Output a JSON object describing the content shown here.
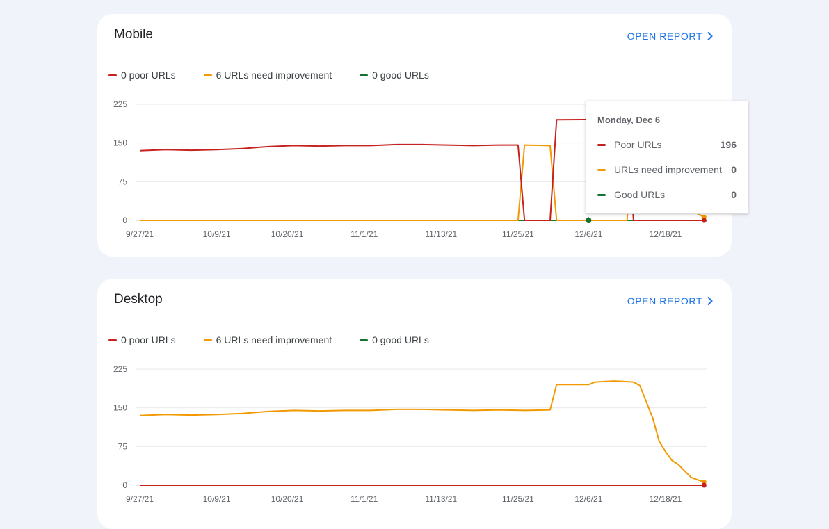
{
  "colors": {
    "poor": "#c5221f",
    "improve": "#f29900",
    "good": "#137333",
    "accent": "#1a73e8"
  },
  "icons": {
    "open_report": "chevron-right-icon"
  },
  "mobile": {
    "title": "Mobile",
    "open_report_label": "OPEN REPORT",
    "legend": {
      "poor": "0 poor URLs",
      "improve": "6 URLs need improvement",
      "good": "0 good URLs"
    },
    "tooltip": {
      "date": "Monday, Dec 6",
      "rows": [
        {
          "label": "Poor URLs",
          "value": "196"
        },
        {
          "label": "URLs need improvement",
          "value": "0"
        },
        {
          "label": "Good URLs",
          "value": "0"
        }
      ]
    }
  },
  "desktop": {
    "title": "Desktop",
    "open_report_label": "OPEN REPORT",
    "legend": {
      "poor": "0 poor URLs",
      "improve": "6 URLs need improvement",
      "good": "0 good URLs"
    }
  },
  "chart_data": [
    {
      "type": "line",
      "chart": "mobile",
      "x_tick_labels": [
        "9/27/21",
        "10/9/21",
        "10/20/21",
        "11/1/21",
        "11/13/21",
        "11/25/21",
        "12/6/21",
        "12/18/21"
      ],
      "y_tick_labels": [
        "0",
        "75",
        "150",
        "225"
      ],
      "ylim": [
        0,
        225
      ],
      "x_start": "2021-09-27",
      "x_end": "2021-12-24",
      "grid": true,
      "legend_position": "top-left",
      "series": [
        {
          "key": "poor",
          "points": [
            [
              "2021-09-27",
              135
            ],
            [
              "2021-10-01",
              137
            ],
            [
              "2021-10-05",
              136
            ],
            [
              "2021-10-09",
              137
            ],
            [
              "2021-10-13",
              139
            ],
            [
              "2021-10-17",
              143
            ],
            [
              "2021-10-21",
              145
            ],
            [
              "2021-10-25",
              144
            ],
            [
              "2021-10-29",
              145
            ],
            [
              "2021-11-02",
              145
            ],
            [
              "2021-11-06",
              147
            ],
            [
              "2021-11-10",
              147
            ],
            [
              "2021-11-14",
              146
            ],
            [
              "2021-11-18",
              145
            ],
            [
              "2021-11-22",
              146
            ],
            [
              "2021-11-25",
              146
            ],
            [
              "2021-11-26",
              0
            ],
            [
              "2021-11-30",
              0
            ],
            [
              "2021-12-01",
              195
            ],
            [
              "2021-12-12",
              196
            ],
            [
              "2021-12-13",
              0
            ],
            [
              "2021-12-24",
              0
            ]
          ]
        },
        {
          "key": "improve",
          "points": [
            [
              "2021-09-27",
              0
            ],
            [
              "2021-11-25",
              0
            ],
            [
              "2021-11-26",
              146
            ],
            [
              "2021-11-30",
              145
            ],
            [
              "2021-12-01",
              0
            ],
            [
              "2021-12-12",
              0
            ],
            [
              "2021-12-13",
              195
            ],
            [
              "2021-12-16",
              150
            ],
            [
              "2021-12-19",
              80
            ],
            [
              "2021-12-22",
              20
            ],
            [
              "2021-12-24",
              6
            ]
          ]
        },
        {
          "key": "good",
          "points": [
            [
              "2021-09-27",
              0
            ],
            [
              "2021-12-24",
              0
            ]
          ]
        }
      ]
    },
    {
      "type": "line",
      "chart": "desktop",
      "x_tick_labels": [
        "9/27/21",
        "10/9/21",
        "10/20/21",
        "11/1/21",
        "11/13/21",
        "11/25/21",
        "12/6/21",
        "12/18/21"
      ],
      "y_tick_labels": [
        "0",
        "75",
        "150",
        "225"
      ],
      "ylim": [
        0,
        225
      ],
      "x_start": "2021-09-27",
      "x_end": "2021-12-24",
      "grid": true,
      "legend_position": "top-left",
      "series": [
        {
          "key": "improve",
          "points": [
            [
              "2021-09-27",
              135
            ],
            [
              "2021-10-01",
              137
            ],
            [
              "2021-10-05",
              136
            ],
            [
              "2021-10-09",
              137
            ],
            [
              "2021-10-13",
              139
            ],
            [
              "2021-10-17",
              143
            ],
            [
              "2021-10-21",
              145
            ],
            [
              "2021-10-25",
              144
            ],
            [
              "2021-10-29",
              145
            ],
            [
              "2021-11-02",
              145
            ],
            [
              "2021-11-06",
              147
            ],
            [
              "2021-11-10",
              147
            ],
            [
              "2021-11-14",
              146
            ],
            [
              "2021-11-18",
              145
            ],
            [
              "2021-11-22",
              146
            ],
            [
              "2021-11-26",
              145
            ],
            [
              "2021-11-30",
              146
            ],
            [
              "2021-12-01",
              195
            ],
            [
              "2021-12-06",
              195
            ],
            [
              "2021-12-07",
              200
            ],
            [
              "2021-12-10",
              202
            ],
            [
              "2021-12-13",
              200
            ],
            [
              "2021-12-14",
              193
            ],
            [
              "2021-12-16",
              130
            ],
            [
              "2021-12-17",
              85
            ],
            [
              "2021-12-18",
              65
            ],
            [
              "2021-12-19",
              48
            ],
            [
              "2021-12-20",
              40
            ],
            [
              "2021-12-22",
              15
            ],
            [
              "2021-12-24",
              6
            ]
          ]
        },
        {
          "key": "poor",
          "points": [
            [
              "2021-09-27",
              0
            ],
            [
              "2021-12-24",
              0
            ]
          ]
        }
      ]
    }
  ]
}
